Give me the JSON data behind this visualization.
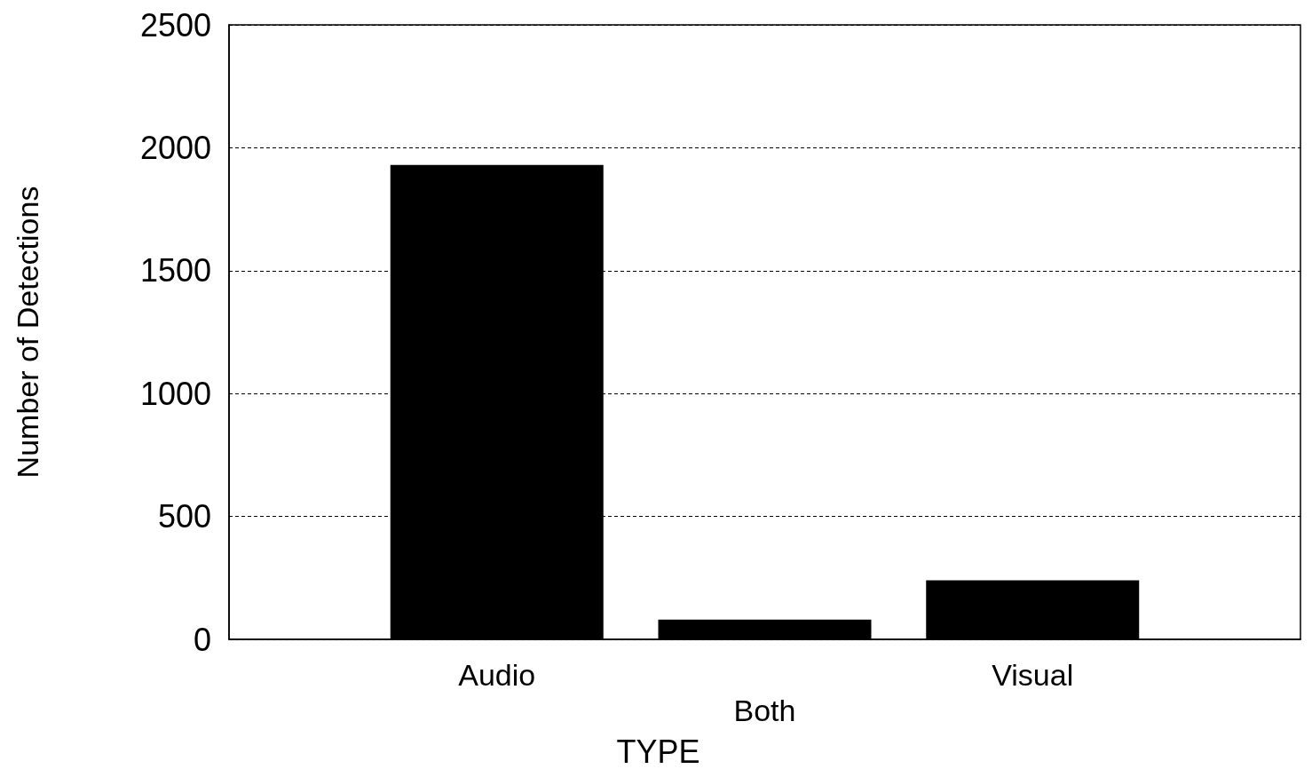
{
  "chart_data": {
    "type": "bar",
    "categories": [
      "Audio",
      "Both",
      "Visual"
    ],
    "values": [
      1930,
      80,
      240
    ],
    "color": "#000000",
    "xlabel": "TYPE",
    "ylabel": "Number of Detections",
    "ylim": [
      0,
      2500
    ],
    "yticks": [
      0,
      500,
      1000,
      1500,
      2000,
      2500
    ],
    "grid": "y"
  }
}
